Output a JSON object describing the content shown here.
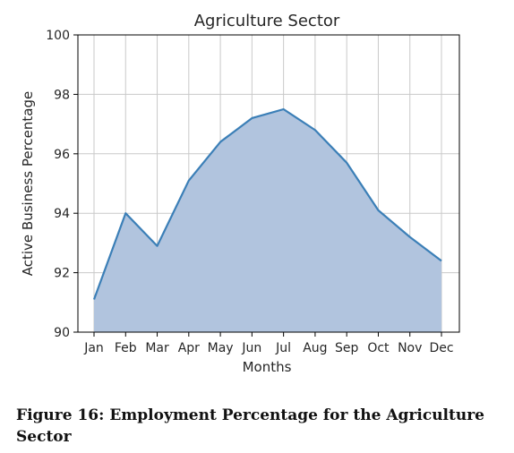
{
  "chart_data": {
    "type": "area",
    "title": "Agriculture Sector",
    "xlabel": "Months",
    "ylabel": "Active Business Percentage",
    "categories": [
      "Jan",
      "Feb",
      "Mar",
      "Apr",
      "May",
      "Jun",
      "Jul",
      "Aug",
      "Sep",
      "Oct",
      "Nov",
      "Dec"
    ],
    "values": [
      91.1,
      94.0,
      92.9,
      95.1,
      96.4,
      97.2,
      97.5,
      96.8,
      95.7,
      94.1,
      93.2,
      92.4
    ],
    "ylim": [
      90,
      100
    ],
    "yticks": [
      "90",
      "92",
      "94",
      "96",
      "98",
      "100"
    ],
    "grid": true,
    "legend": "none",
    "colors": {
      "line": "#3b7fb7",
      "fill": "#b1c4de",
      "grid": "#c9c9c9",
      "axis": "#000000"
    }
  },
  "caption": "Figure 16: Employment Percentage for the Agriculture Sector"
}
